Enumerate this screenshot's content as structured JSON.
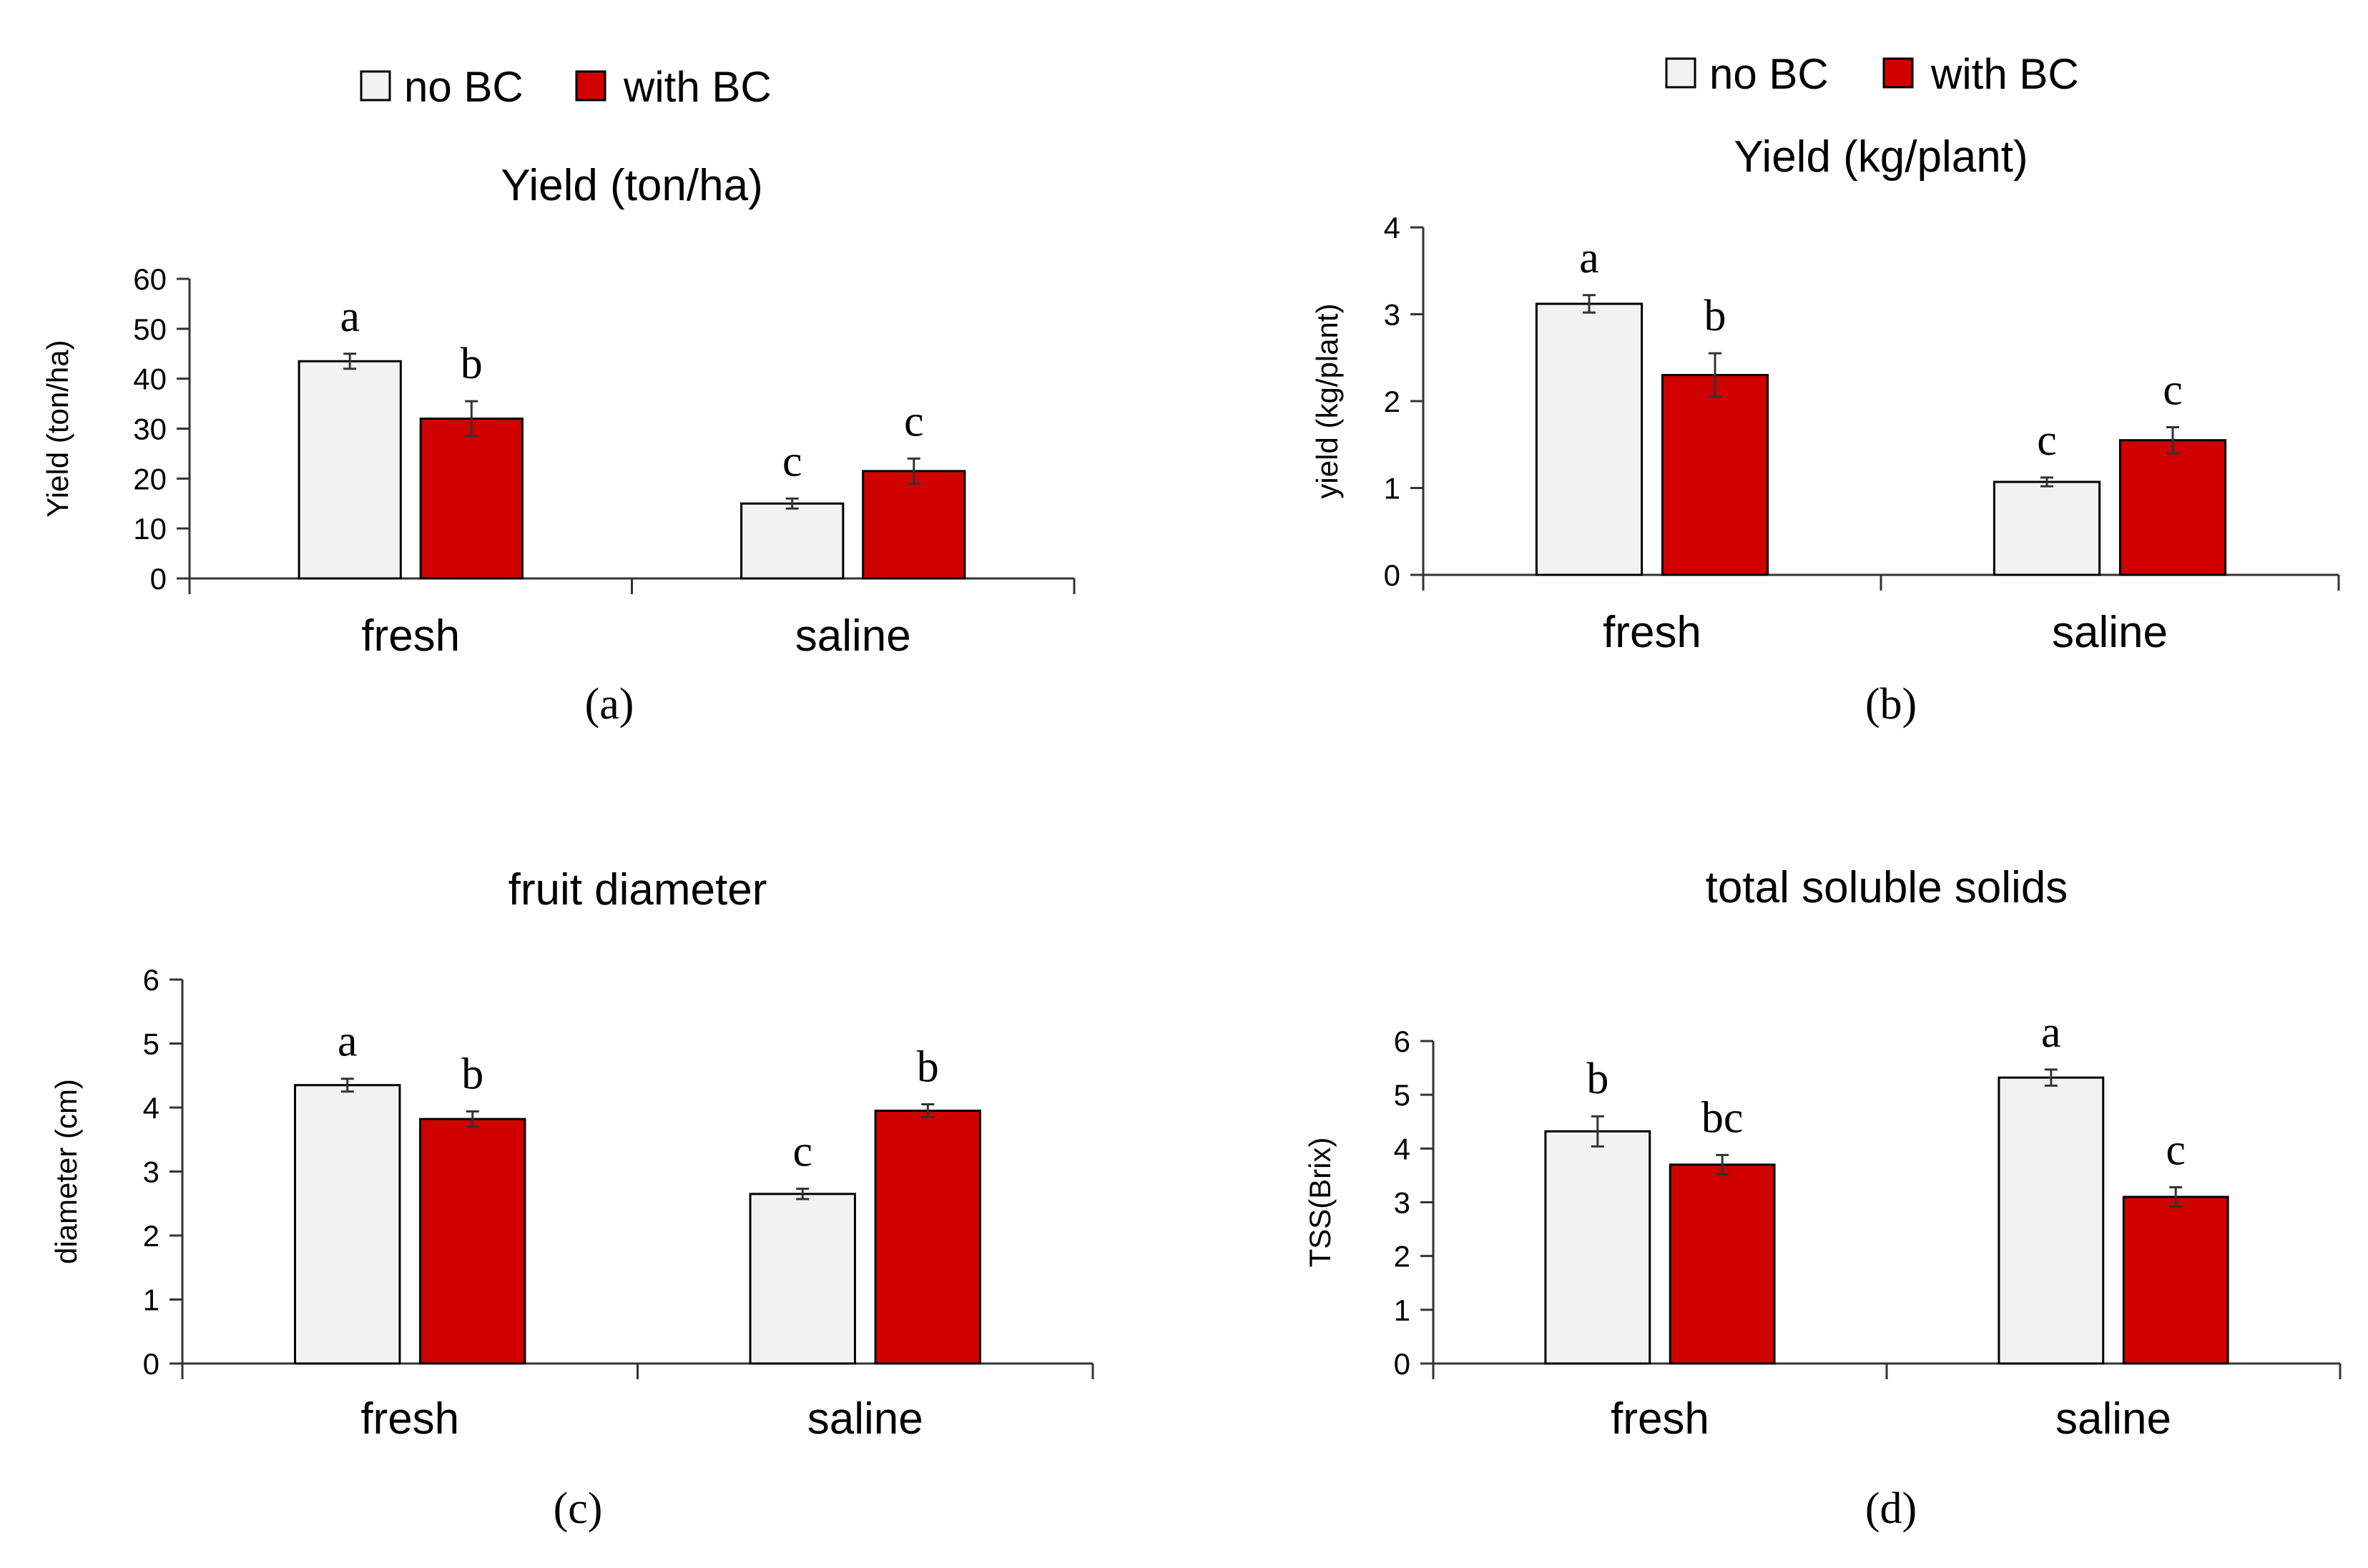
{
  "colors": {
    "no_bc_fill": "#f2f2f2",
    "with_bc_fill": "#d00000",
    "bar_stroke": "#000000",
    "axis": "#333333",
    "text": "#000000"
  },
  "legend_items": [
    "no BC",
    "with BC"
  ],
  "chart_data": [
    {
      "type": "bar",
      "panel_label": "(a)",
      "title": "Yield (ton/ha)",
      "ylabel": "Yield (ton/ha)",
      "xlabel": "",
      "categories": [
        "fresh",
        "saline"
      ],
      "ylim": [
        0,
        60
      ],
      "yticks": [
        "0",
        "10",
        "20",
        "30",
        "40",
        "50",
        "60"
      ],
      "legend": [
        "no BC",
        "with BC"
      ],
      "series": [
        {
          "name": "no BC",
          "values": [
            43.5,
            15
          ],
          "errors": [
            1.5,
            1
          ],
          "letters": [
            "a",
            "c"
          ]
        },
        {
          "name": "with BC",
          "values": [
            32,
            21.5
          ],
          "errors": [
            3.5,
            2.5
          ],
          "letters": [
            "b",
            "c"
          ]
        }
      ]
    },
    {
      "type": "bar",
      "panel_label": "(b)",
      "title": "Yield (kg/plant)",
      "ylabel": "yield (kg/plant)",
      "xlabel": "",
      "categories": [
        "fresh",
        "saline"
      ],
      "ylim": [
        0,
        4
      ],
      "yticks": [
        "0",
        "1",
        "2",
        "3",
        "4"
      ],
      "legend": [
        "no BC",
        "with BC"
      ],
      "series": [
        {
          "name": "no BC",
          "values": [
            3.12,
            1.07
          ],
          "errors": [
            0.1,
            0.05
          ],
          "letters": [
            "a",
            "c"
          ]
        },
        {
          "name": "with BC",
          "values": [
            2.3,
            1.55
          ],
          "errors": [
            0.25,
            0.15
          ],
          "letters": [
            "b",
            "c"
          ]
        }
      ]
    },
    {
      "type": "bar",
      "panel_label": "(c)",
      "title": "fruit diameter",
      "ylabel": "diameter (cm)",
      "xlabel": "",
      "categories": [
        "fresh",
        "saline"
      ],
      "ylim": [
        0,
        6
      ],
      "yticks": [
        "0",
        "1",
        "2",
        "3",
        "4",
        "5",
        "6"
      ],
      "series": [
        {
          "name": "no BC",
          "values": [
            4.35,
            2.65
          ],
          "errors": [
            0.1,
            0.08
          ],
          "letters": [
            "a",
            "c"
          ]
        },
        {
          "name": "with BC",
          "values": [
            3.82,
            3.95
          ],
          "errors": [
            0.12,
            0.1
          ],
          "letters": [
            "b",
            "b"
          ]
        }
      ]
    },
    {
      "type": "bar",
      "panel_label": "(d)",
      "title": "total soluble solids",
      "ylabel": "TSS(Brix)",
      "xlabel": "",
      "categories": [
        "fresh",
        "saline"
      ],
      "ylim": [
        0,
        6
      ],
      "yticks": [
        "0",
        "1",
        "2",
        "3",
        "4",
        "5",
        "6"
      ],
      "series": [
        {
          "name": "no BC",
          "values": [
            4.32,
            5.32
          ],
          "errors": [
            0.28,
            0.15
          ],
          "letters": [
            "b",
            "a"
          ]
        },
        {
          "name": "with BC",
          "values": [
            3.7,
            3.1
          ],
          "errors": [
            0.18,
            0.18
          ],
          "letters": [
            "bc",
            "c"
          ]
        }
      ]
    }
  ]
}
